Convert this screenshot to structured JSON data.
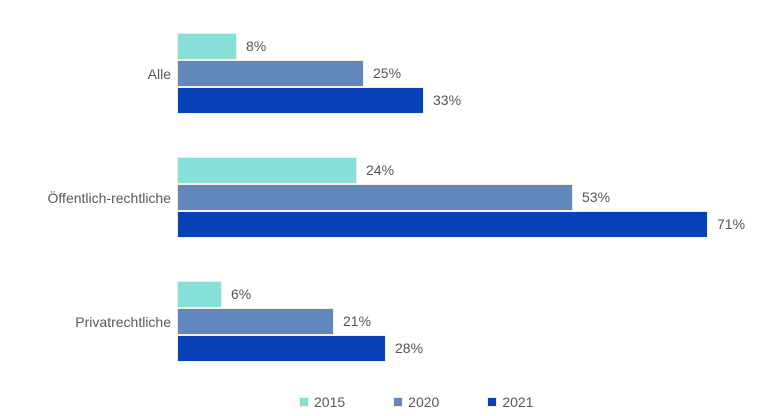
{
  "chart_data": {
    "type": "bar",
    "orientation": "horizontal",
    "title": "",
    "xlabel": "",
    "ylabel": "",
    "grid": false,
    "legend_position": "bottom",
    "value_suffix": "%",
    "xlim": [
      0,
      79
    ],
    "categories": [
      "Alle",
      "Öffentlich-rechtliche",
      "Privatrechtliche"
    ],
    "series": [
      {
        "name": "2015",
        "color": "#87dfda",
        "values": [
          8,
          24,
          6
        ]
      },
      {
        "name": "2020",
        "color": "#6287bd",
        "values": [
          25,
          53,
          21
        ]
      },
      {
        "name": "2021",
        "color": "#0641b8",
        "values": [
          33,
          71,
          28
        ]
      }
    ],
    "value_labels": {
      "Alle": [
        "8%",
        "25%",
        "33%"
      ],
      "Öffentlich-rechtliche": [
        "24%",
        "53%",
        "71%"
      ],
      "Privatrechtliche": [
        "6%",
        "21%",
        "28%"
      ]
    }
  },
  "styles": {
    "background": "#ffffff",
    "label_color": "#595959",
    "bar_border_color": "#f9eddc"
  }
}
